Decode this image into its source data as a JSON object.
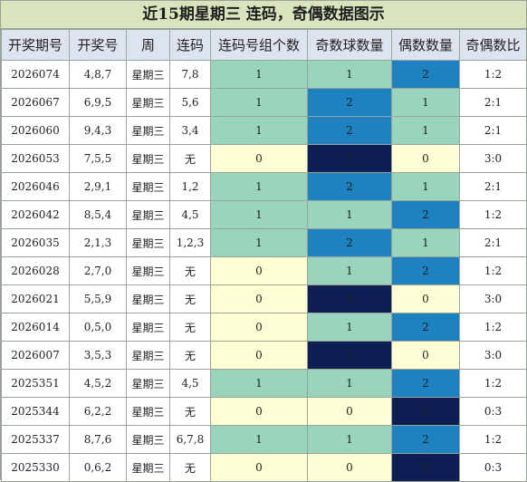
{
  "title": "近15期星期三 连码，奇偶数据图示",
  "headers": [
    "开奖期号",
    "开奖号",
    "周",
    "连码",
    "连码号组个数",
    "奇数球数量",
    "偶数数量",
    "奇偶数比"
  ],
  "colors": {
    "title_bg": "#d8e4bc",
    "header_bg": "#dde4ef",
    "value_0": "#ffffd5",
    "value_1": "#98d5bc",
    "value_2": "#1f82c0",
    "value_3": "#0e1f55"
  },
  "chart_data": {
    "type": "table",
    "rows": [
      {
        "issue": "2026074",
        "numbers": "4,8,7",
        "week": "星期三",
        "lianma": "7,8",
        "groups": 1,
        "odd": 1,
        "even": 2,
        "ratio": "1:2"
      },
      {
        "issue": "2026067",
        "numbers": "6,9,5",
        "week": "星期三",
        "lianma": "5,6",
        "groups": 1,
        "odd": 2,
        "even": 1,
        "ratio": "2:1"
      },
      {
        "issue": "2026060",
        "numbers": "9,4,3",
        "week": "星期三",
        "lianma": "3,4",
        "groups": 1,
        "odd": 2,
        "even": 1,
        "ratio": "2:1"
      },
      {
        "issue": "2026053",
        "numbers": "7,5,5",
        "week": "星期三",
        "lianma": "无",
        "groups": 0,
        "odd": 3,
        "even": 0,
        "ratio": "3:0"
      },
      {
        "issue": "2026046",
        "numbers": "2,9,1",
        "week": "星期三",
        "lianma": "1,2",
        "groups": 1,
        "odd": 2,
        "even": 1,
        "ratio": "2:1"
      },
      {
        "issue": "2026042",
        "numbers": "8,5,4",
        "week": "星期三",
        "lianma": "4,5",
        "groups": 1,
        "odd": 1,
        "even": 2,
        "ratio": "1:2"
      },
      {
        "issue": "2026035",
        "numbers": "2,1,3",
        "week": "星期三",
        "lianma": "1,2,3",
        "groups": 1,
        "odd": 2,
        "even": 1,
        "ratio": "2:1"
      },
      {
        "issue": "2026028",
        "numbers": "2,7,0",
        "week": "星期三",
        "lianma": "无",
        "groups": 0,
        "odd": 1,
        "even": 2,
        "ratio": "1:2"
      },
      {
        "issue": "2026021",
        "numbers": "5,5,9",
        "week": "星期三",
        "lianma": "无",
        "groups": 0,
        "odd": 3,
        "even": 0,
        "ratio": "3:0"
      },
      {
        "issue": "2026014",
        "numbers": "0,5,0",
        "week": "星期三",
        "lianma": "无",
        "groups": 0,
        "odd": 1,
        "even": 2,
        "ratio": "1:2"
      },
      {
        "issue": "2026007",
        "numbers": "3,5,3",
        "week": "星期三",
        "lianma": "无",
        "groups": 0,
        "odd": 3,
        "even": 0,
        "ratio": "3:0"
      },
      {
        "issue": "2025351",
        "numbers": "4,5,2",
        "week": "星期三",
        "lianma": "4,5",
        "groups": 1,
        "odd": 1,
        "even": 2,
        "ratio": "1:2"
      },
      {
        "issue": "2025344",
        "numbers": "6,2,2",
        "week": "星期三",
        "lianma": "无",
        "groups": 0,
        "odd": 0,
        "even": 3,
        "ratio": "0:3"
      },
      {
        "issue": "2025337",
        "numbers": "8,7,6",
        "week": "星期三",
        "lianma": "6,7,8",
        "groups": 1,
        "odd": 1,
        "even": 2,
        "ratio": "1:2"
      },
      {
        "issue": "2025330",
        "numbers": "0,6,2",
        "week": "星期三",
        "lianma": "无",
        "groups": 0,
        "odd": 0,
        "even": 3,
        "ratio": "0:3"
      }
    ]
  }
}
